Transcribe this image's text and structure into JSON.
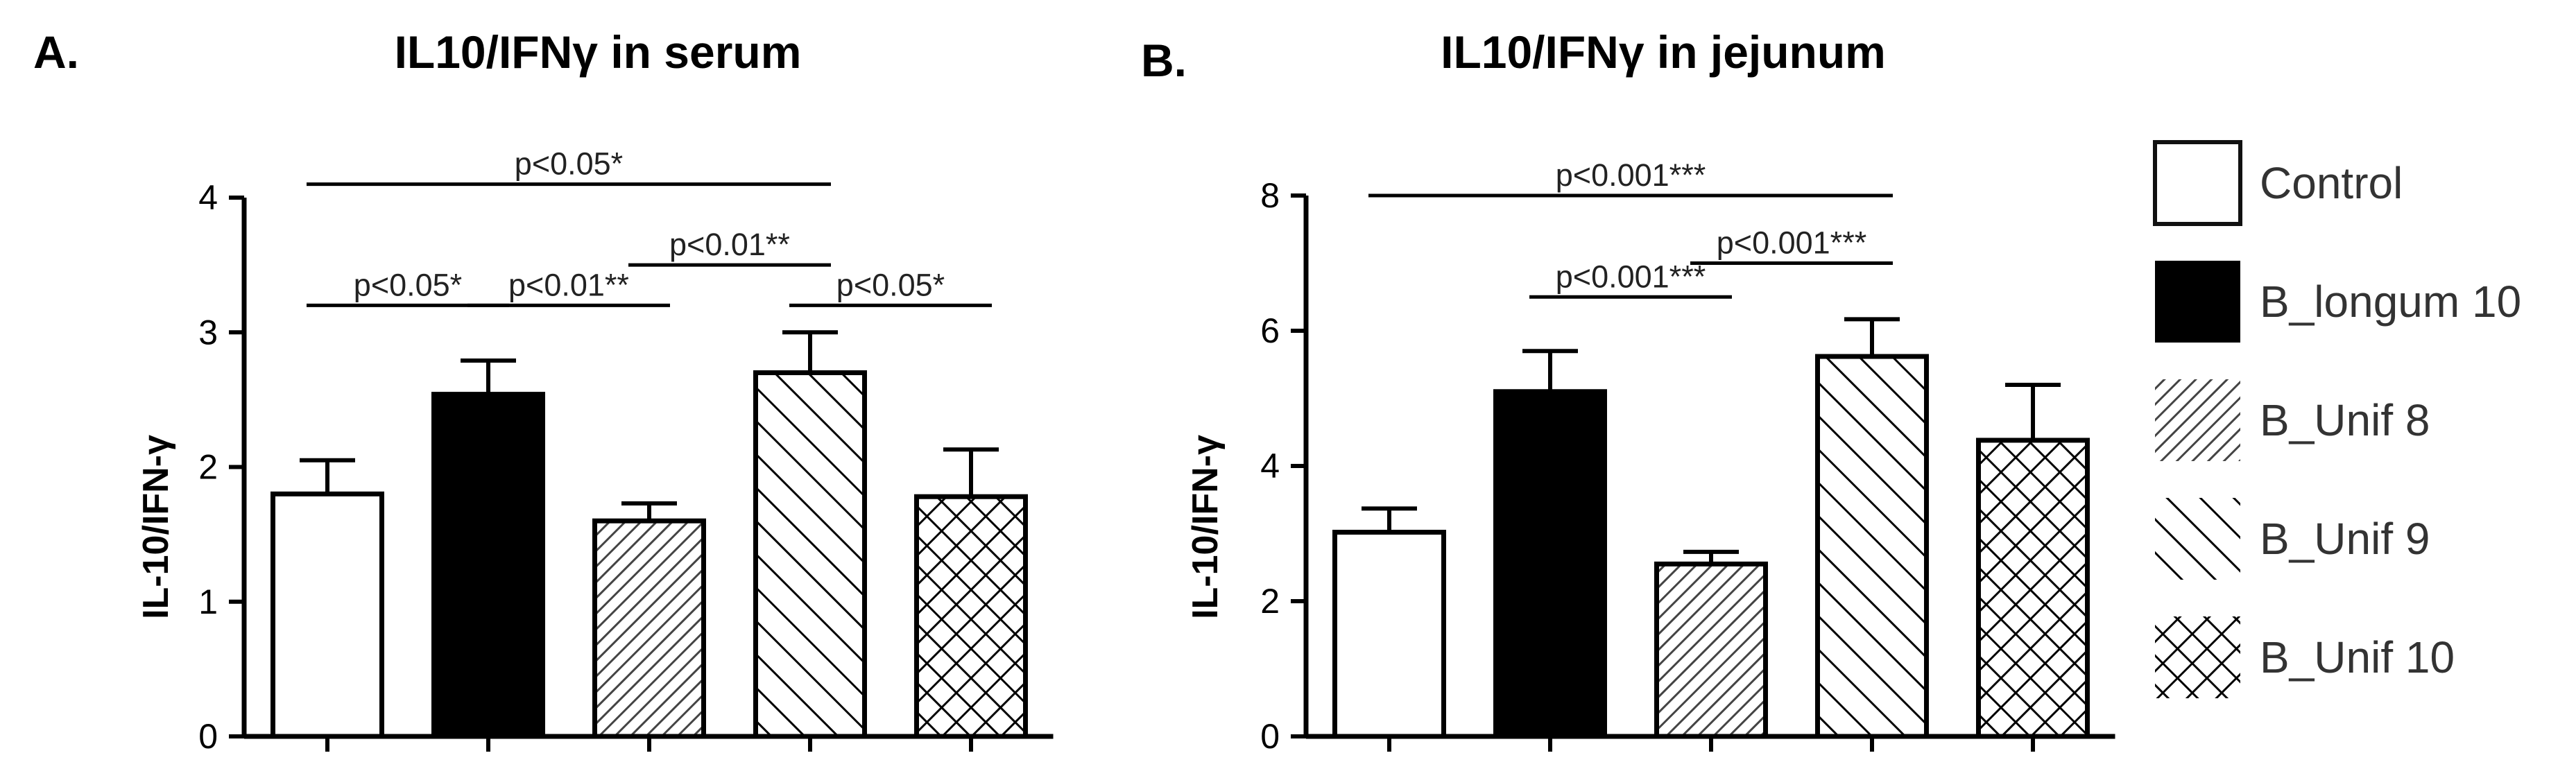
{
  "chart_data": [
    {
      "panel": "A.",
      "type": "bar",
      "title": "IL10/IFNγ in serum",
      "xlabel": "",
      "ylabel": "IL-10/IFN-γ",
      "ylim": [
        0,
        4
      ],
      "yticks": [
        0,
        1,
        2,
        3,
        4
      ],
      "categories": [
        "Control",
        "B_longum 10",
        "B_Unif 8",
        "B_Unif 9",
        "B_Unif 10"
      ],
      "values": [
        1.8,
        2.54,
        1.6,
        2.7,
        1.78
      ],
      "errors": [
        0.25,
        0.25,
        0.13,
        0.3,
        0.35
      ],
      "significance": [
        {
          "from": 0,
          "to": 1,
          "y": 3.2,
          "label": "p<0.05*"
        },
        {
          "from": 1,
          "to": 2,
          "y": 3.2,
          "label": "p<0.01**"
        },
        {
          "from": 2,
          "to": 3,
          "y": 3.5,
          "label": "p<0.01**"
        },
        {
          "from": 3,
          "to": 4,
          "y": 3.2,
          "label": "p<0.05*"
        },
        {
          "from": 0,
          "to": 3,
          "y": 4.1,
          "label": "p<0.05*"
        }
      ]
    },
    {
      "panel": "B.",
      "type": "bar",
      "title": "IL10/IFNγ in jejunum",
      "xlabel": "",
      "ylabel": "IL-10/IFN-γ",
      "ylim": [
        0,
        8
      ],
      "yticks": [
        0,
        2,
        4,
        6,
        8
      ],
      "categories": [
        "Control",
        "B_longum 10",
        "B_Unif 8",
        "B_Unif 9",
        "B_Unif 10"
      ],
      "values": [
        3.02,
        5.1,
        2.55,
        5.62,
        4.38
      ],
      "errors": [
        0.35,
        0.6,
        0.18,
        0.55,
        0.82
      ],
      "significance": [
        {
          "from": 0,
          "to": 3,
          "y": 8.0,
          "label": "p<0.001***"
        },
        {
          "from": 1,
          "to": 2,
          "y": 6.5,
          "label": "p<0.001***"
        },
        {
          "from": 2,
          "to": 3,
          "y": 7.0,
          "label": "p<0.001***"
        }
      ]
    }
  ],
  "legend": {
    "position": "right",
    "items": [
      {
        "label": "Control",
        "fill": "white"
      },
      {
        "label": "B_longum 10",
        "fill": "black"
      },
      {
        "label": "B_Unif 8",
        "fill": "fine-diagonal-hatch"
      },
      {
        "label": "B_Unif 9",
        "fill": "coarse-backslash-hatch"
      },
      {
        "label": "B_Unif 10",
        "fill": "crosshatch"
      }
    ]
  },
  "colors": {
    "bar_edge": "#000000",
    "solid_bar": "#000000",
    "background": "#ffffff"
  }
}
